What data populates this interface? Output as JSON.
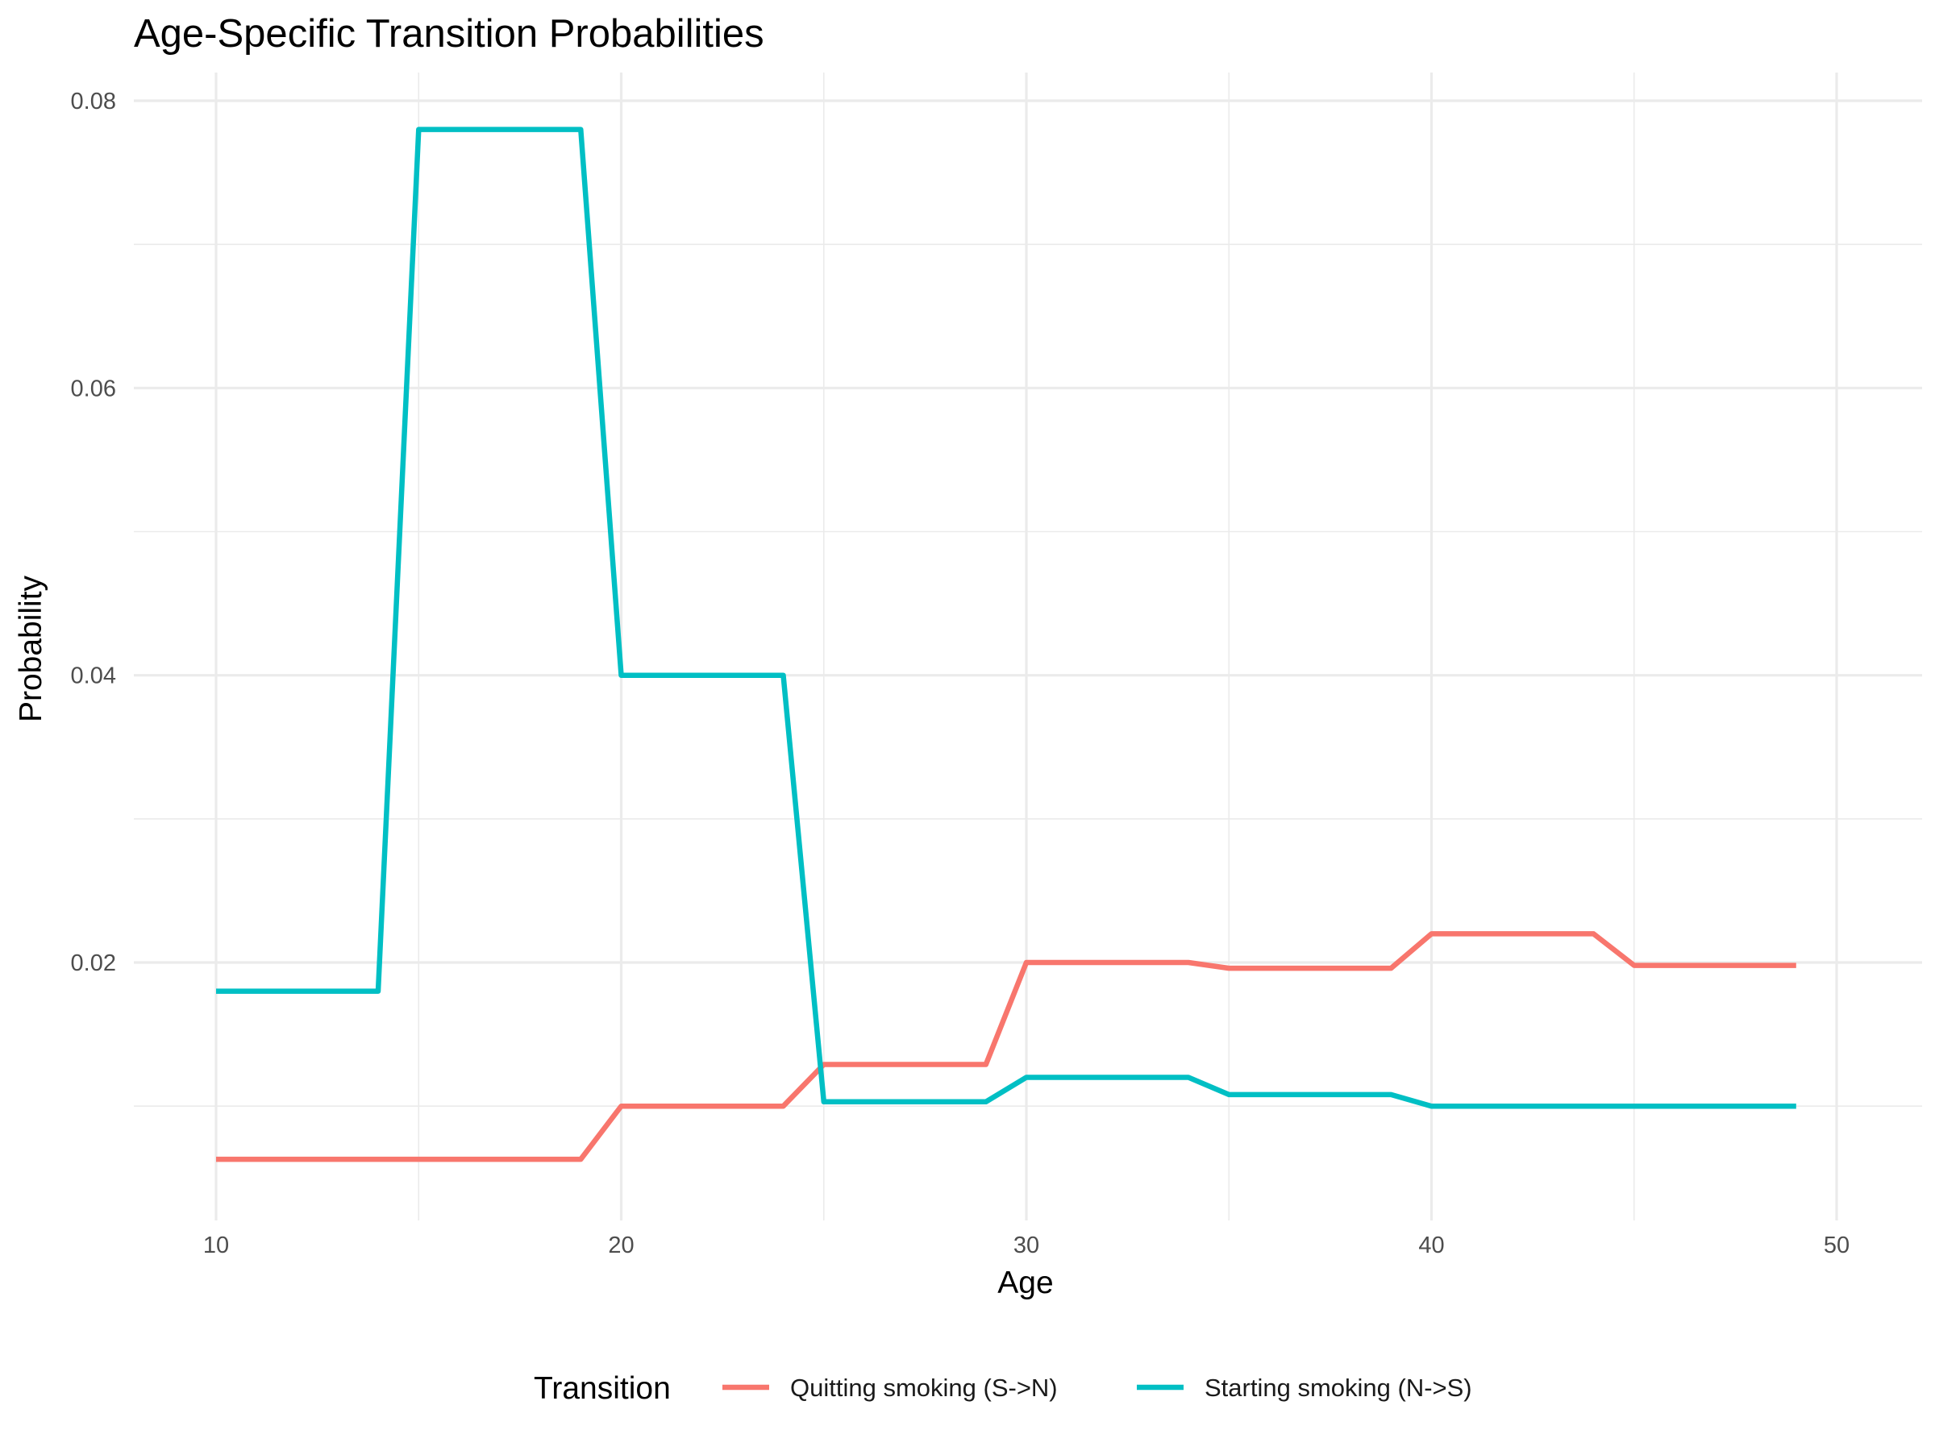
{
  "chart_data": {
    "type": "line",
    "title": "Age-Specific Transition Probabilities",
    "xlabel": "Age",
    "ylabel": "Probability",
    "xlim": [
      10,
      50
    ],
    "ylim": [
      0.004,
      0.08
    ],
    "x_ticks": [
      10,
      20,
      30,
      40,
      50
    ],
    "y_ticks": [
      0.02,
      0.04,
      0.06,
      0.08
    ],
    "x_tick_labels": [
      "10",
      "20",
      "30",
      "40",
      "50"
    ],
    "y_tick_labels": [
      "0.02",
      "0.04",
      "0.06",
      "0.08"
    ],
    "grid": true,
    "legend": {
      "title": "Transition",
      "placement": "bottom"
    },
    "x": [
      10,
      11,
      12,
      13,
      14,
      15,
      16,
      17,
      18,
      19,
      20,
      21,
      22,
      23,
      24,
      25,
      26,
      27,
      28,
      29,
      30,
      31,
      32,
      33,
      34,
      35,
      36,
      37,
      38,
      39,
      40,
      41,
      42,
      43,
      44,
      45,
      46,
      47,
      48,
      49
    ],
    "series": [
      {
        "name": "Quitting smoking (S->N)",
        "color": "#F8766D",
        "values": [
          0.0063,
          0.0063,
          0.0063,
          0.0063,
          0.0063,
          0.0063,
          0.0063,
          0.0063,
          0.0063,
          0.0063,
          0.01,
          0.01,
          0.01,
          0.01,
          0.01,
          0.0129,
          0.0129,
          0.0129,
          0.0129,
          0.0129,
          0.02,
          0.02,
          0.02,
          0.02,
          0.02,
          0.0196,
          0.0196,
          0.0196,
          0.0196,
          0.0196,
          0.022,
          0.022,
          0.022,
          0.022,
          0.022,
          0.0198,
          0.0198,
          0.0198,
          0.0198,
          0.0198
        ]
      },
      {
        "name": "Starting smoking (N->S)",
        "color": "#00BFC4",
        "values": [
          0.018,
          0.018,
          0.018,
          0.018,
          0.018,
          0.078,
          0.078,
          0.078,
          0.078,
          0.078,
          0.04,
          0.04,
          0.04,
          0.04,
          0.04,
          0.0103,
          0.0103,
          0.0103,
          0.0103,
          0.0103,
          0.012,
          0.012,
          0.012,
          0.012,
          0.012,
          0.0108,
          0.0108,
          0.0108,
          0.0108,
          0.0108,
          0.01,
          0.01,
          0.01,
          0.01,
          0.01,
          0.01,
          0.01,
          0.01,
          0.01,
          0.01
        ]
      }
    ]
  }
}
